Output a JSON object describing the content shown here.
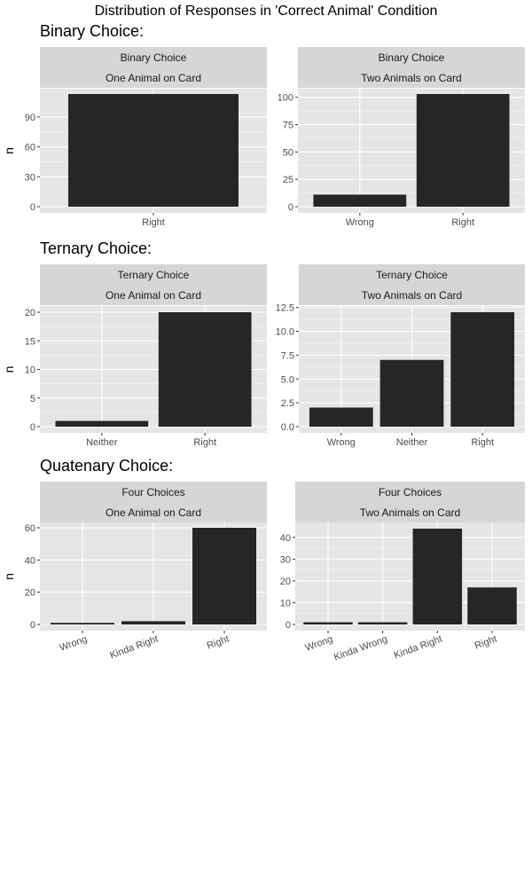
{
  "title": "Distribution of Responses in 'Correct Animal' Condition",
  "sections": [
    "Binary Choice:",
    "Ternary Choice:",
    "Quatenary Choice:"
  ],
  "y_axis_label": "n",
  "colors": {
    "panel_bg": "#e5e5e5",
    "strip_bg": "#d6d6d6",
    "bar": "#262626",
    "grid": "#ffffff"
  },
  "chart_data": [
    {
      "type": "bar",
      "strip_top": "Binary Choice",
      "strip_bottom": "One Animal on Card",
      "categories": [
        "Right"
      ],
      "values": [
        113
      ],
      "ylim": [
        0,
        113
      ],
      "yticks": [
        0,
        30,
        60,
        90
      ],
      "ytick_labels": [
        "0",
        "30",
        "60",
        "90"
      ],
      "xlabel": "",
      "ylabel": "n",
      "grid": true
    },
    {
      "type": "bar",
      "strip_top": "Binary Choice",
      "strip_bottom": "Two Animals on Card",
      "categories": [
        "Wrong",
        "Right"
      ],
      "values": [
        11,
        103
      ],
      "ylim": [
        0,
        103
      ],
      "yticks": [
        0,
        25,
        50,
        75,
        100
      ],
      "ytick_labels": [
        "0",
        "25",
        "50",
        "75",
        "100"
      ],
      "xlabel": "",
      "ylabel": "",
      "grid": true
    },
    {
      "type": "bar",
      "strip_top": "Ternary Choice",
      "strip_bottom": "One Animal on Card",
      "categories": [
        "Neither",
        "Right"
      ],
      "values": [
        1,
        20
      ],
      "ylim": [
        0,
        20
      ],
      "yticks": [
        0,
        5,
        10,
        15,
        20
      ],
      "ytick_labels": [
        "0",
        "5",
        "10",
        "15",
        "20"
      ],
      "xlabel": "",
      "ylabel": "n",
      "grid": true
    },
    {
      "type": "bar",
      "strip_top": "Ternary Choice",
      "strip_bottom": "Two Animals on Card",
      "categories": [
        "Wrong",
        "Neither",
        "Right"
      ],
      "values": [
        2,
        7,
        12
      ],
      "ylim": [
        0,
        12
      ],
      "yticks": [
        0,
        2.5,
        5,
        7.5,
        10,
        12.5
      ],
      "ytick_labels": [
        "0.0",
        "2.5",
        "5.0",
        "7.5",
        "10.0",
        "12.5"
      ],
      "xlabel": "",
      "ylabel": "",
      "grid": true
    },
    {
      "type": "bar",
      "strip_top": "Four Choices",
      "strip_bottom": "One Animal on Card",
      "categories": [
        "Wrong",
        "Kinda Right",
        "Right"
      ],
      "values": [
        1,
        2,
        60
      ],
      "ylim": [
        0,
        60
      ],
      "yticks": [
        0,
        20,
        40,
        60
      ],
      "ytick_labels": [
        "0",
        "20",
        "40",
        "60"
      ],
      "xlabel": "",
      "ylabel": "n",
      "grid": true,
      "rotated_xticks": true
    },
    {
      "type": "bar",
      "strip_top": "Four Choices",
      "strip_bottom": "Two Animals on Card",
      "categories": [
        "Wrong",
        "Kinda Wrong",
        "Kinda Right",
        "Right"
      ],
      "values": [
        1,
        1,
        44,
        17
      ],
      "ylim": [
        0,
        44
      ],
      "yticks": [
        0,
        10,
        20,
        30,
        40
      ],
      "ytick_labels": [
        "0",
        "10",
        "20",
        "30",
        "40"
      ],
      "xlabel": "",
      "ylabel": "",
      "grid": true,
      "rotated_xticks": true
    }
  ]
}
